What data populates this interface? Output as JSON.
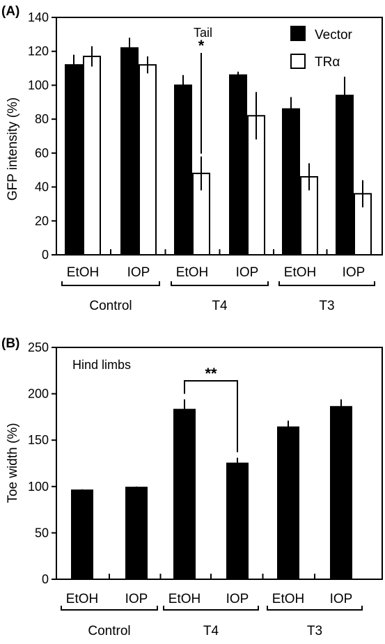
{
  "chart_data": [
    {
      "panel_label": "(A)",
      "type": "bar",
      "annotation": "Tail",
      "ylabel": "GFP intensity (%)",
      "ylim": [
        0,
        140
      ],
      "yticks": [
        "0",
        "20",
        "40",
        "60",
        "80",
        "100",
        "120",
        "140"
      ],
      "categories": [
        "EtOH",
        "IOP",
        "EtOH",
        "IOP",
        "EtOH",
        "IOP"
      ],
      "groups": [
        "Control",
        "T4",
        "T3"
      ],
      "legend_position": "top-right",
      "series": [
        {
          "name": "Vector",
          "fill": "#000000",
          "values": [
            112,
            122,
            100,
            106,
            86,
            94
          ],
          "errors": [
            6,
            6,
            6,
            2,
            7,
            11
          ]
        },
        {
          "name": "TRα",
          "fill": "#ffffff",
          "values": [
            117,
            112,
            48,
            82,
            46,
            36
          ],
          "errors": [
            6,
            5,
            10,
            14,
            8,
            8
          ]
        }
      ],
      "significance": {
        "label": "*"
      }
    },
    {
      "panel_label": "(B)",
      "type": "bar",
      "annotation": "Hind limbs",
      "ylabel": "Toe width (%)",
      "ylim": [
        0,
        250
      ],
      "yticks": [
        "0",
        "50",
        "100",
        "150",
        "200",
        "250"
      ],
      "categories": [
        "EtOH",
        "IOP",
        "EtOH",
        "IOP",
        "EtOH",
        "IOP"
      ],
      "groups": [
        "Control",
        "T4",
        "T3"
      ],
      "series": [
        {
          "fill": "#000000",
          "values": [
            96,
            99,
            183,
            125,
            164,
            186
          ],
          "errors": [
            1,
            1,
            11,
            6,
            7,
            8
          ]
        }
      ],
      "significance": {
        "label": "**"
      }
    }
  ]
}
